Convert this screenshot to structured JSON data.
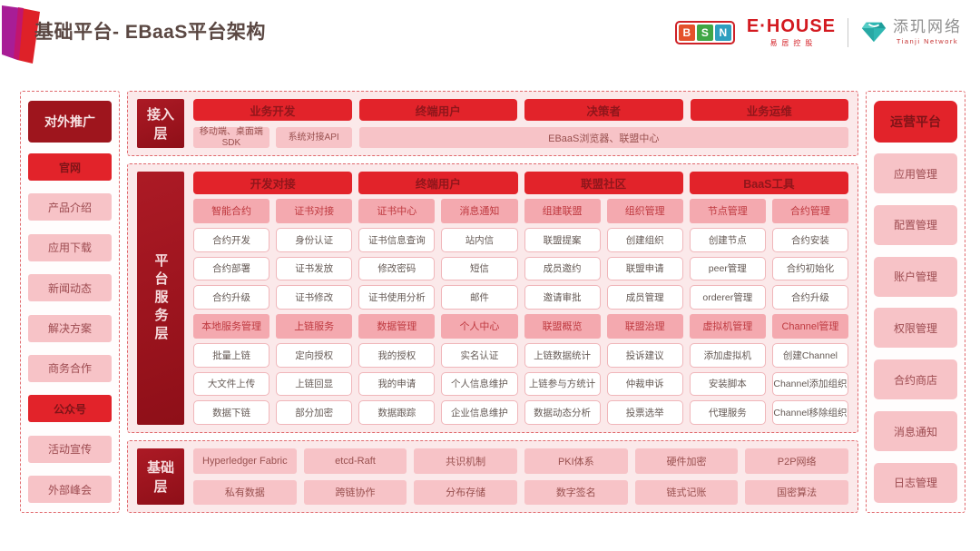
{
  "page": {
    "title": "基础平台- EBaaS平台架构"
  },
  "logos": {
    "bsn": {
      "letters": [
        "B",
        "S",
        "N"
      ]
    },
    "ehouse": {
      "name": "E·HOUSE",
      "subtitle": "易居控股"
    },
    "tianji": {
      "name": "添玑网络",
      "subtitle": "Tianji Network"
    }
  },
  "left_panel": {
    "title": "对外推广",
    "items": [
      {
        "label": "官网",
        "variant": "red"
      },
      {
        "label": "产品介绍",
        "variant": "pink"
      },
      {
        "label": "应用下载",
        "variant": "pink"
      },
      {
        "label": "新闻动态",
        "variant": "pink"
      },
      {
        "label": "解决方案",
        "variant": "pink"
      },
      {
        "label": "商务合作",
        "variant": "pink"
      },
      {
        "label": "公众号",
        "variant": "red"
      },
      {
        "label": "活动宣传",
        "variant": "pink"
      },
      {
        "label": "外部峰会",
        "variant": "pink"
      }
    ]
  },
  "right_panel": {
    "title": "运营平台",
    "items": [
      {
        "label": "应用管理"
      },
      {
        "label": "配置管理"
      },
      {
        "label": "账户管理"
      },
      {
        "label": "权限管理"
      },
      {
        "label": "合约商店"
      },
      {
        "label": "消息通知"
      },
      {
        "label": "日志管理"
      }
    ]
  },
  "access_layer": {
    "label": "接入层",
    "headers": [
      "业务开发",
      "终端用户",
      "决策者",
      "业务运维"
    ],
    "cells": [
      "移动端、桌面端SDK",
      "系统对接API",
      "EBaaS浏览器、联盟中心"
    ]
  },
  "platform_layer": {
    "label": "平台服务层",
    "headers": [
      "开发对接",
      "终端用户",
      "联盟社区",
      "BaaS工具"
    ],
    "rows": [
      {
        "variant": "pink",
        "cells": [
          "智能合约",
          "证书对接",
          "证书中心",
          "消息通知",
          "组建联盟",
          "组织管理",
          "节点管理",
          "合约管理"
        ]
      },
      {
        "variant": "white",
        "cells": [
          "合约开发",
          "身份认证",
          "证书信息查询",
          "站内信",
          "联盟提案",
          "创建组织",
          "创建节点",
          "合约安装"
        ]
      },
      {
        "variant": "white",
        "cells": [
          "合约部署",
          "证书发放",
          "修改密码",
          "短信",
          "成员邀约",
          "联盟申请",
          "peer管理",
          "合约初始化"
        ]
      },
      {
        "variant": "white",
        "cells": [
          "合约升级",
          "证书修改",
          "证书使用分析",
          "邮件",
          "邀请审批",
          "成员管理",
          "orderer管理",
          "合约升级"
        ]
      },
      {
        "variant": "pink",
        "cells": [
          "本地服务管理",
          "上链服务",
          "数据管理",
          "个人中心",
          "联盟概览",
          "联盟治理",
          "虚拟机管理",
          "Channel管理"
        ]
      },
      {
        "variant": "white",
        "cells": [
          "批量上链",
          "定向授权",
          "我的授权",
          "实名认证",
          "上链数据统计",
          "投诉建议",
          "添加虚拟机",
          "创建Channel"
        ]
      },
      {
        "variant": "white",
        "cells": [
          "大文件上传",
          "上链回显",
          "我的申请",
          "个人信息维护",
          "上链参与方统计",
          "仲裁申诉",
          "安装脚本",
          "Channel添加组织"
        ]
      },
      {
        "variant": "white",
        "cells": [
          "数据下链",
          "部分加密",
          "数据跟踪",
          "企业信息维护",
          "数据动态分析",
          "投票选举",
          "代理服务",
          "Channel移除组织"
        ]
      }
    ]
  },
  "base_layer": {
    "label": "基础层",
    "rows": [
      [
        "Hyperledger Fabric",
        "etcd-Raft",
        "共识机制",
        "PKI体系",
        "硬件加密",
        "P2P网络"
      ],
      [
        "私有数据",
        "跨链协作",
        "分布存储",
        "数字签名",
        "链式记账",
        "国密算法"
      ]
    ]
  },
  "colors": {
    "accent_dark_red": "#9E151D",
    "accent_red": "#E2232A",
    "pink_cell": "#F7C3C7",
    "pink_subheader": "#F4A9AF",
    "panel_background": "#FBE9EA",
    "dashed_border": "#E0696D",
    "title_text": "#5A4742",
    "ehouse_red": "#D31A20",
    "tianji_teal": "#2FB7B2"
  }
}
